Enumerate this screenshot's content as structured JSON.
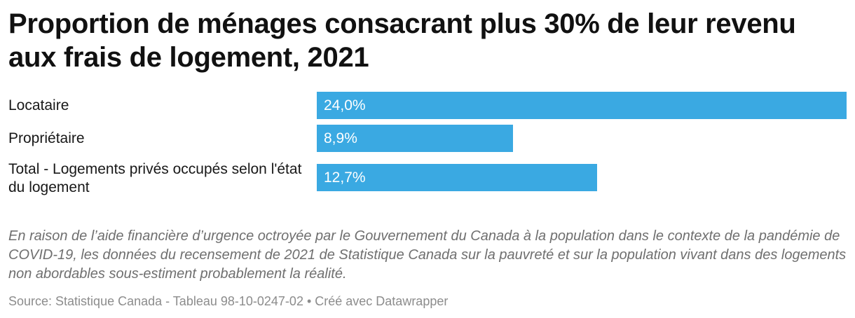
{
  "chart_data": {
    "type": "bar",
    "orientation": "horizontal",
    "title": "Proportion de ménages consacrant plus 30% de leur revenu aux frais de logement, 2021",
    "categories": [
      "Locataire",
      "Propriétaire",
      "Total - Logements privés occupés selon l'état du logement"
    ],
    "values": [
      24.0,
      8.9,
      12.7
    ],
    "value_labels": [
      "24,0%",
      "8,9%",
      "12,7%"
    ],
    "unit": "%",
    "xlim": [
      0,
      24.0
    ],
    "grid": false,
    "bar_color": "#3aa9e2"
  },
  "footer": {
    "note": "En raison de l’aide financière d’urgence octroyée par le Gouvernement du Canada à la population dans le contexte de la pandémie de COVID-19, les données du recensement de 2021 de Statistique Canada sur la pauvreté et sur la population vivant dans des logements non abordables sous-estiment probablement la réalité.",
    "source": "Source: Statistique Canada - Tableau 98-10-0247-02 • Créé avec Datawrapper"
  }
}
